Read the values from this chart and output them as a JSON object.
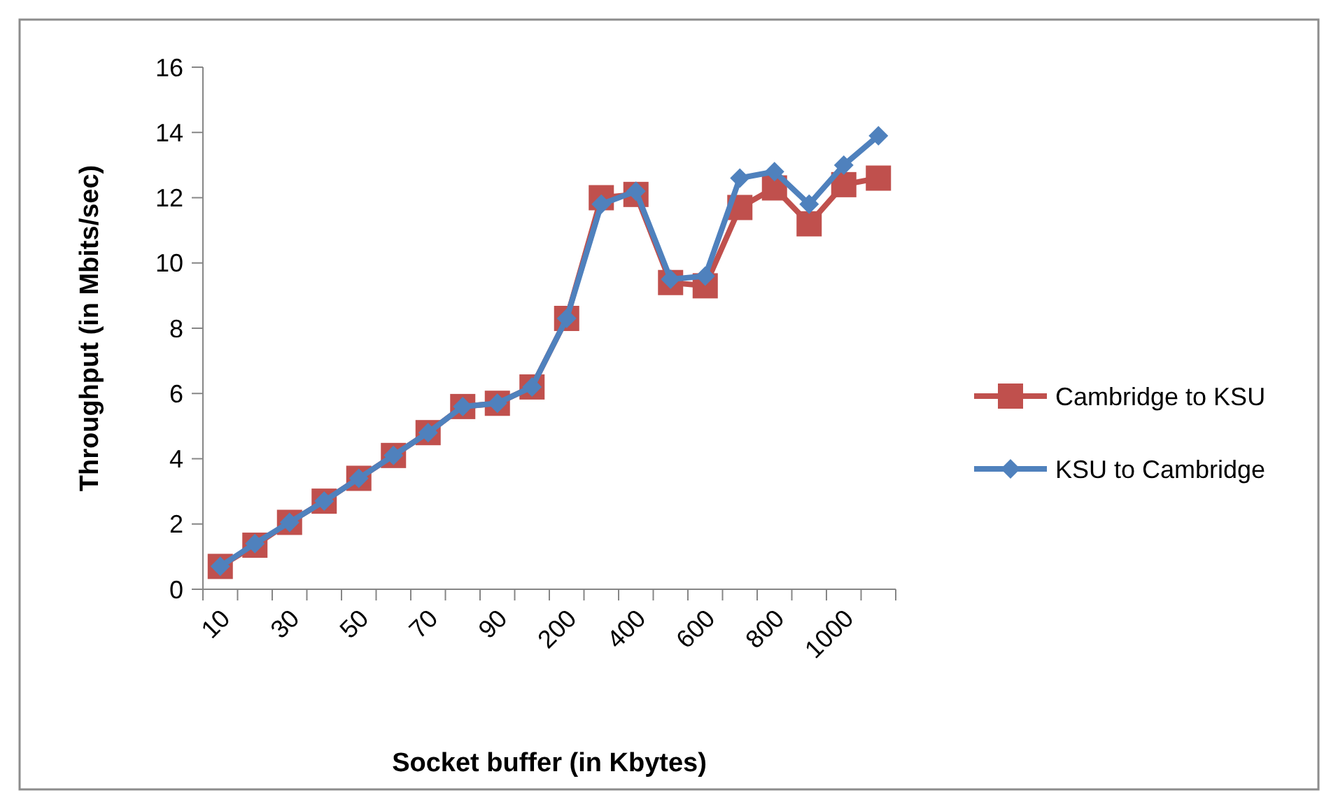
{
  "chart_data": {
    "type": "line",
    "xlabel": "Socket buffer (in Kbytes)",
    "ylabel": "Throughput (in Mbits/sec)",
    "categories": [
      "10",
      null,
      "30",
      null,
      "50",
      null,
      "70",
      null,
      "90",
      null,
      "200",
      null,
      "400",
      null,
      "600",
      null,
      "800",
      null,
      "1000",
      null
    ],
    "series": [
      {
        "name": "Cambridge to KSU",
        "color": "#c0504d",
        "marker": "square",
        "values": [
          0.7,
          1.35,
          2.05,
          2.7,
          3.4,
          4.1,
          4.8,
          5.6,
          5.7,
          6.2,
          8.3,
          12.0,
          12.1,
          9.4,
          9.3,
          11.7,
          12.3,
          11.2,
          12.4,
          12.6
        ]
      },
      {
        "name": "KSU to Cambridge",
        "color": "#4f81bd",
        "marker": "diamond",
        "values": [
          0.7,
          1.4,
          2.05,
          2.7,
          3.4,
          4.1,
          4.8,
          5.6,
          5.7,
          6.2,
          8.3,
          11.8,
          12.2,
          9.5,
          9.6,
          12.6,
          12.8,
          11.8,
          13.0,
          13.9
        ]
      }
    ],
    "ylim": [
      0,
      16
    ],
    "yticks": [
      0,
      2,
      4,
      6,
      8,
      10,
      12,
      14,
      16
    ],
    "grid": false,
    "legend": "right"
  }
}
